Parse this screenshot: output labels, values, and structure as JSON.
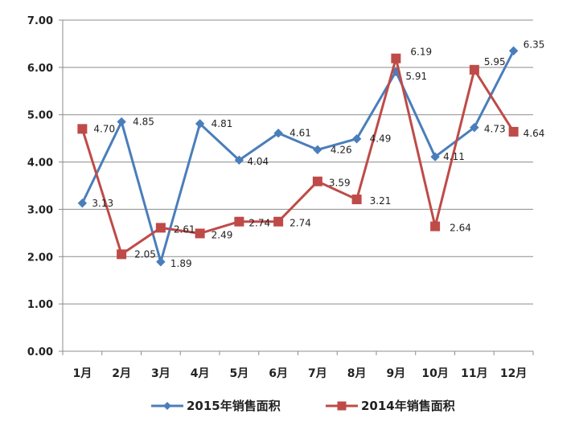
{
  "chart_data": {
    "type": "line",
    "title": "",
    "xlabel": "",
    "ylabel": "",
    "categories": [
      "1月",
      "2月",
      "3月",
      "4月",
      "5月",
      "6月",
      "7月",
      "8月",
      "9月",
      "10月",
      "11月",
      "12月"
    ],
    "ylim": [
      0,
      7
    ],
    "yticks": [
      "0.00",
      "1.00",
      "2.00",
      "3.00",
      "4.00",
      "5.00",
      "6.00",
      "7.00"
    ],
    "grid": true,
    "legend_position": "bottom",
    "series": [
      {
        "name": "2015年销售面积",
        "color": "#4a7ebb",
        "marker": "diamond",
        "values": [
          3.13,
          4.85,
          1.89,
          4.81,
          4.04,
          4.61,
          4.26,
          4.49,
          5.91,
          4.11,
          4.73,
          6.35
        ],
        "labels": [
          "3.13",
          "4.85",
          "1.89",
          "4.81",
          "4.04",
          "4.61",
          "4.26",
          "4.49",
          "5.91",
          "4.11",
          "4.73",
          "6.35"
        ]
      },
      {
        "name": "2014年销售面积",
        "color": "#be4b48",
        "marker": "square",
        "values": [
          4.7,
          2.05,
          2.61,
          2.49,
          2.74,
          2.74,
          3.59,
          3.21,
          6.19,
          2.64,
          5.95,
          4.64
        ],
        "labels": [
          "4.70",
          "2.05",
          "2.61",
          "2.49",
          "2.74",
          "2.74",
          "3.59",
          "3.21",
          "6.19",
          "2.64",
          "5.95",
          "4.64"
        ]
      }
    ]
  }
}
